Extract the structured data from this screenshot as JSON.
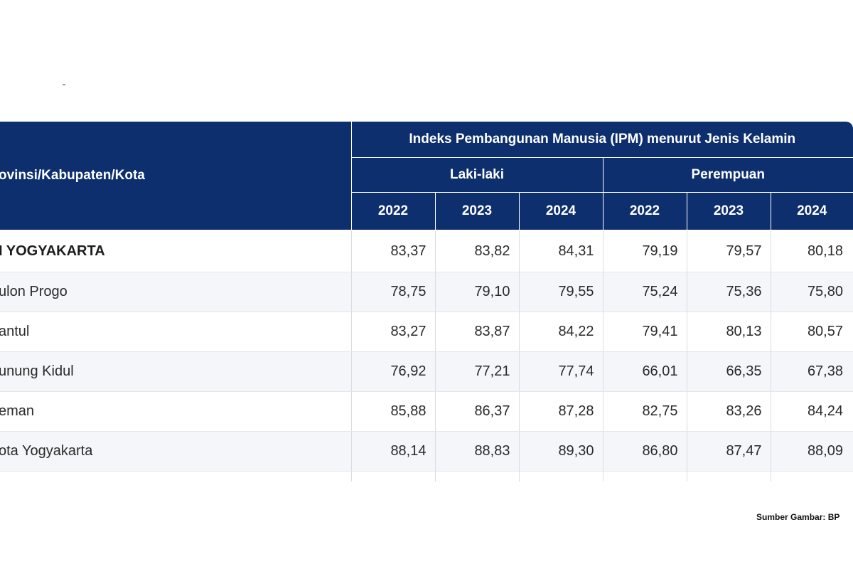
{
  "table": {
    "region_header": "ovinsi/Kabupaten/Kota",
    "group_header": "Indeks Pembangunan Manusia (IPM) menurut Jenis Kelamin",
    "sub_headers": [
      "Laki-laki",
      "Perempuan"
    ],
    "years": [
      "2022",
      "2023",
      "2024",
      "2022",
      "2023",
      "2024"
    ],
    "rows": [
      {
        "region": "I YOGYAKARTA",
        "values": [
          "83,37",
          "83,82",
          "84,31",
          "79,19",
          "79,57",
          "80,18"
        ]
      },
      {
        "region": "ulon Progo",
        "values": [
          "78,75",
          "79,10",
          "79,55",
          "75,24",
          "75,36",
          "75,80"
        ]
      },
      {
        "region": "antul",
        "values": [
          "83,27",
          "83,87",
          "84,22",
          "79,41",
          "80,13",
          "80,57"
        ]
      },
      {
        "region": "unung Kidul",
        "values": [
          "76,92",
          "77,21",
          "77,74",
          "66,01",
          "66,35",
          "67,38"
        ]
      },
      {
        "region": "eman",
        "values": [
          "85,88",
          "86,37",
          "87,28",
          "82,75",
          "83,26",
          "84,24"
        ]
      },
      {
        "region": "ota Yogyakarta",
        "values": [
          "88,14",
          "88,83",
          "89,30",
          "86,80",
          "87,47",
          "88,09"
        ]
      },
      {
        "region": "",
        "values": [
          "",
          "",
          "",
          "",
          "",
          ""
        ]
      }
    ]
  },
  "source_note": "Sumber Gambar: BP",
  "colors": {
    "header_bg": "#0e2f6e",
    "header_text": "#ffffff",
    "row_alt": "#f4f6f9"
  }
}
